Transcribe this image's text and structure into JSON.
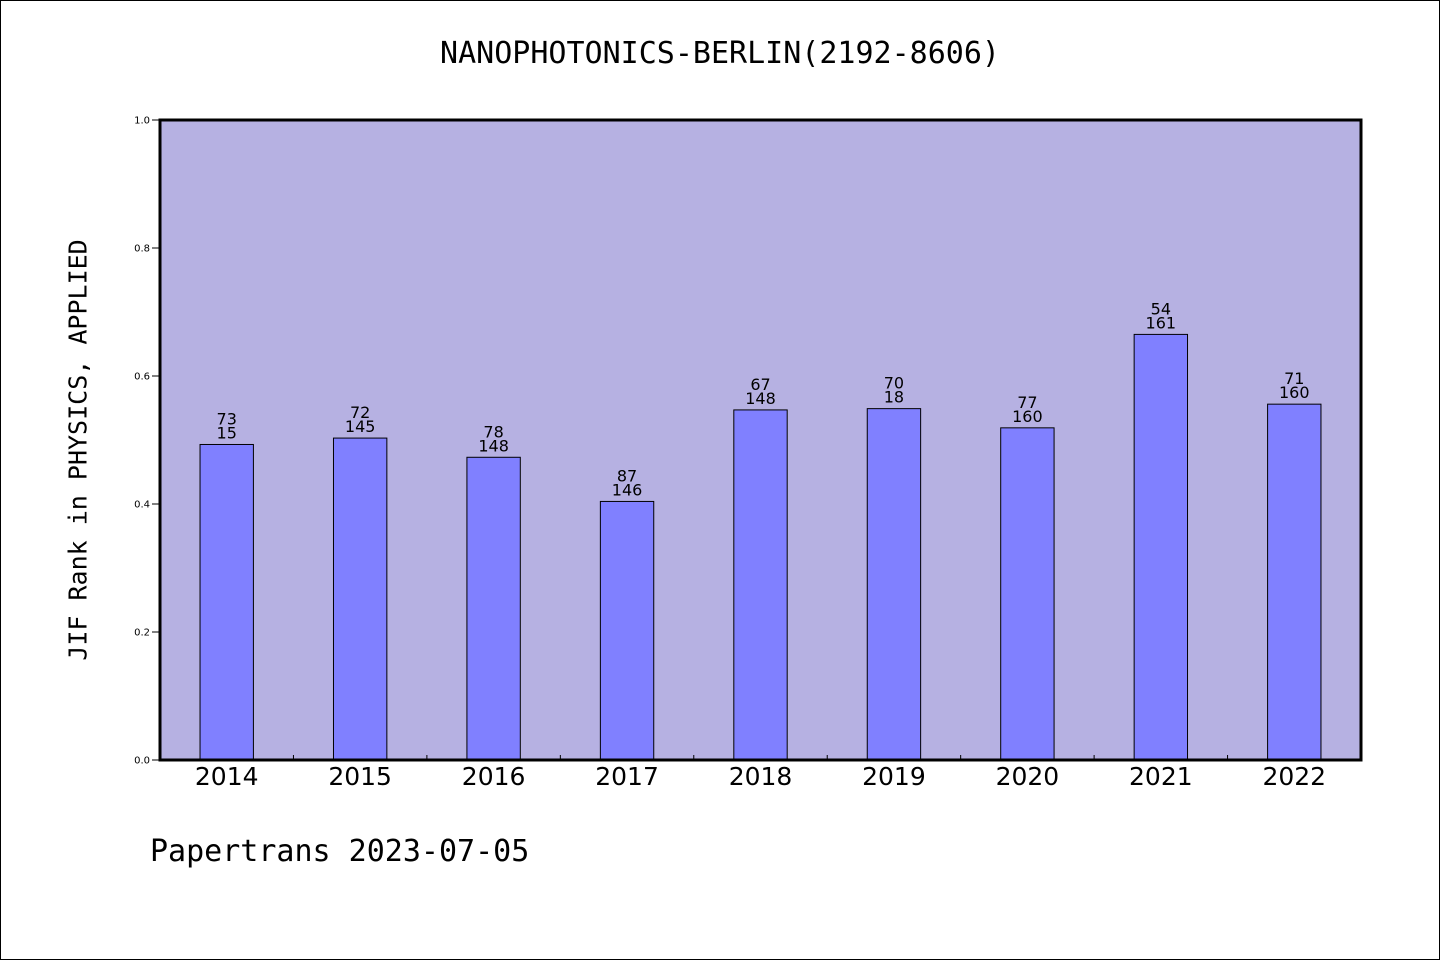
{
  "chart_data": {
    "type": "bar",
    "title": "NANOPHOTONICS-BERLIN(2192-8606)",
    "ylabel": "JIF Rank in PHYSICS, APPLIED",
    "xlabel": "",
    "ylim": [
      0,
      1.0
    ],
    "yticks": [
      "0.0",
      "0.2",
      "0.4",
      "0.6",
      "0.8",
      "1.0"
    ],
    "categories": [
      "2014",
      "2015",
      "2016",
      "2017",
      "2018",
      "2019",
      "2020",
      "2021",
      "2022"
    ],
    "values": [
      0.493,
      0.503,
      0.473,
      0.404,
      0.547,
      0.549,
      0.519,
      0.665,
      0.556
    ],
    "rank_labels": [
      "73",
      "72",
      "78",
      "87",
      "67",
      "70",
      "77",
      "54",
      "71"
    ],
    "total_labels": [
      "15",
      "145",
      "148",
      "146",
      "148",
      "18",
      "160",
      "161",
      "160"
    ],
    "grid": false,
    "colors": {
      "plot_background": "#b6b1e2",
      "bar_fill": "#8080ff",
      "bar_stroke": "#000000"
    }
  },
  "footer": {
    "text": "Papertrans 2023-07-05"
  }
}
